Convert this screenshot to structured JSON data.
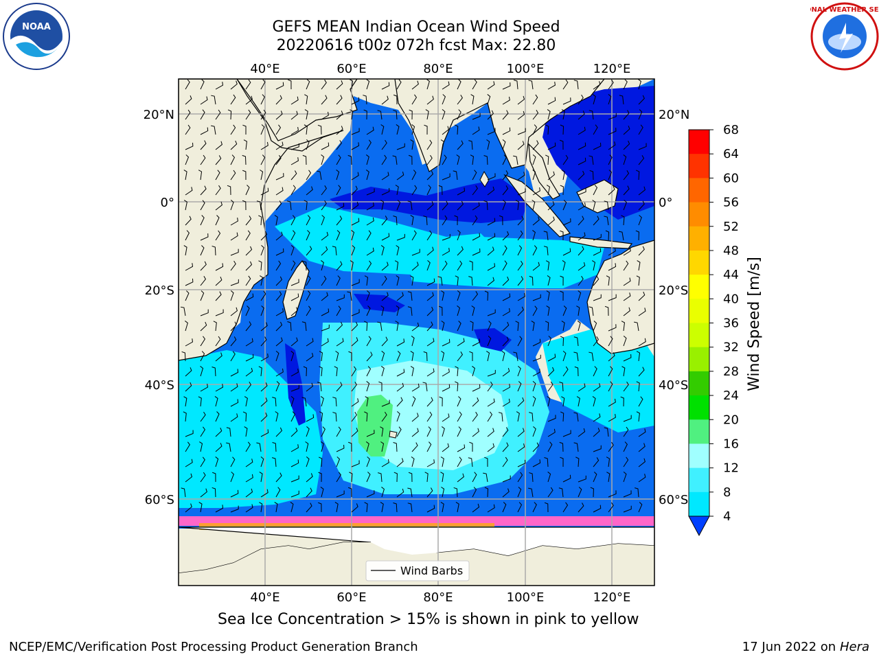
{
  "header": {
    "title_line1": "GEFS MEAN Indian Ocean Wind Speed",
    "title_line2": "20220616 t00z 072h fcst   Max: 22.80"
  },
  "logos": {
    "left": "NOAA",
    "right": "NATIONAL WEATHER SERVICE"
  },
  "map": {
    "top_lon_labels": [
      "40°E",
      "60°E",
      "80°E",
      "100°E",
      "120°E"
    ],
    "bottom_lon_labels": [
      "40°E",
      "60°E",
      "80°E",
      "100°E",
      "120°E"
    ],
    "left_lat_labels": [
      "20°N",
      "0°",
      "20°S",
      "40°S",
      "60°S"
    ],
    "right_lat_labels": [
      "20°N",
      "0°",
      "20°S",
      "40°S",
      "60°S"
    ],
    "legend_label": "Wind Barbs"
  },
  "colorbar": {
    "label": "Wind Speed [m/s]",
    "ticks": [
      "68",
      "64",
      "60",
      "56",
      "52",
      "48",
      "44",
      "40",
      "36",
      "32",
      "28",
      "24",
      "20",
      "16",
      "12",
      "8",
      "4"
    ],
    "colors": [
      "#ff0000",
      "#ff3300",
      "#ff6600",
      "#ff8c00",
      "#ffb000",
      "#ffd700",
      "#ffff00",
      "#eaff00",
      "#ccff00",
      "#99f000",
      "#33cc00",
      "#00e000",
      "#50f080",
      "#a0ffff",
      "#40f0ff",
      "#00e8ff",
      "#0096ff",
      "#0040ff"
    ]
  },
  "note": "Sea Ice Concentration > 15% is shown in pink to yellow",
  "footer": {
    "left": "NCEP/EMC/Verification Post Processing Product Generation Branch",
    "date": "17 Jun 2022 on",
    "machine": "Hera"
  }
}
